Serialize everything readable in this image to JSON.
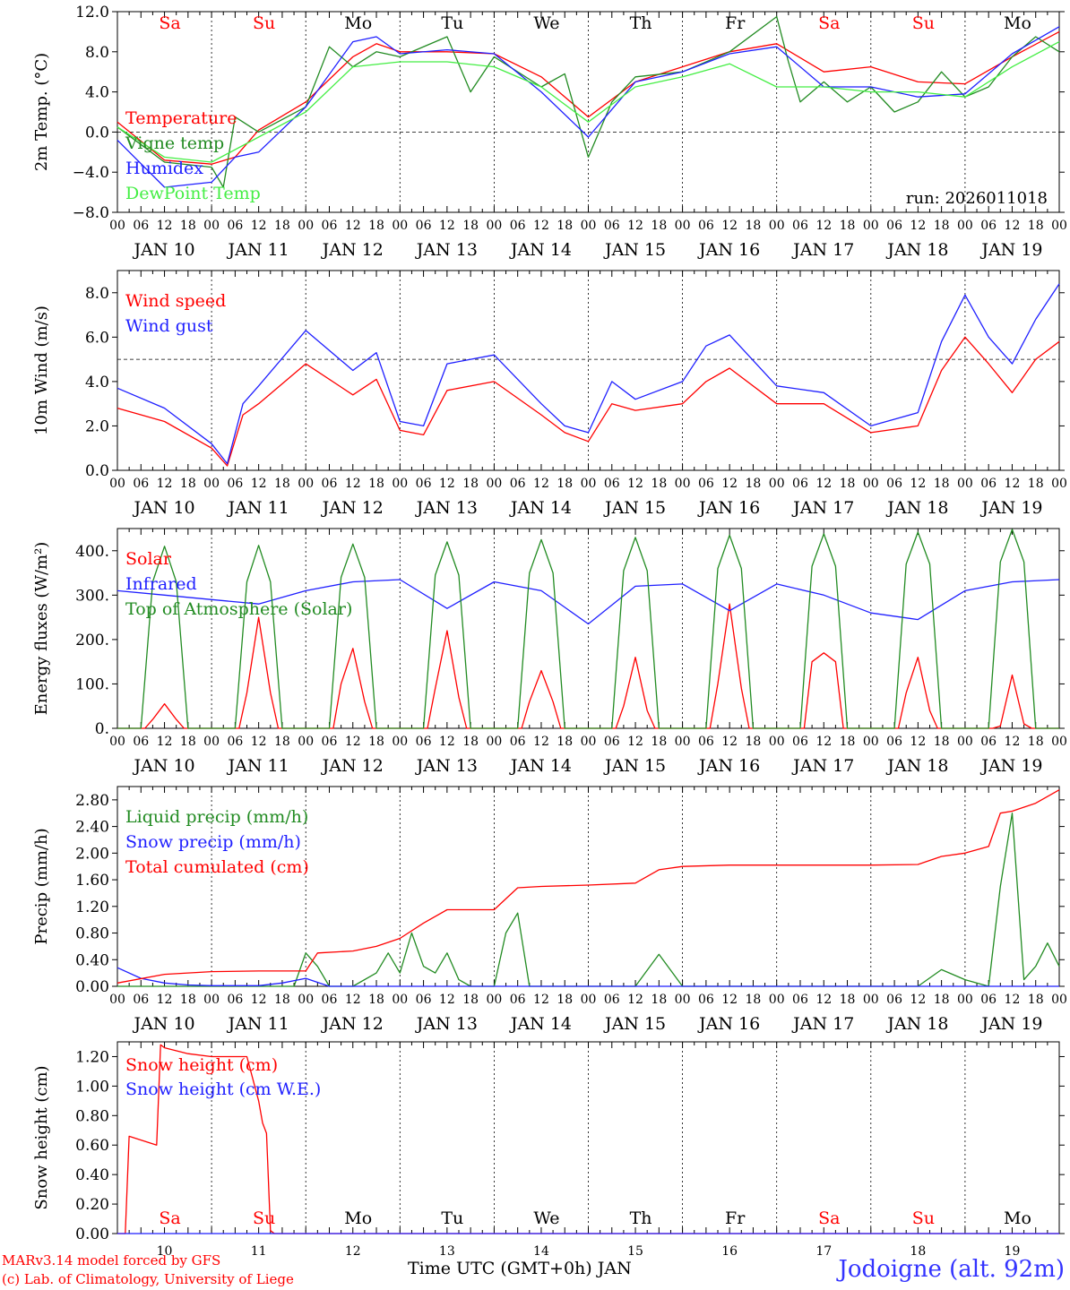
{
  "run_label": "run: 2026011018",
  "station": "Jodoigne (alt. 92m)",
  "credits": [
    "MARv3.14 model forced by GFS",
    "(c) Lab. of Climatology, University of Liege"
  ],
  "x_axis_title": "Time UTC (GMT+0h) JAN",
  "colors": {
    "red": "#ff0000",
    "darkgreen": "#228b22",
    "blue": "#1f1fff",
    "lightgreen": "#44ee44",
    "weekend": "#ff0000",
    "weekday": "#000000"
  },
  "days": [
    {
      "abbr": "Sa",
      "date": "JAN 10",
      "num": "10",
      "weekend": true
    },
    {
      "abbr": "Su",
      "date": "JAN 11",
      "num": "11",
      "weekend": true
    },
    {
      "abbr": "Mo",
      "date": "JAN 12",
      "num": "12",
      "weekend": false
    },
    {
      "abbr": "Tu",
      "date": "JAN 13",
      "num": "13",
      "weekend": false
    },
    {
      "abbr": "We",
      "date": "JAN 14",
      "num": "14",
      "weekend": false
    },
    {
      "abbr": "Th",
      "date": "JAN 15",
      "num": "15",
      "weekend": false
    },
    {
      "abbr": "Fr",
      "date": "JAN 16",
      "num": "16",
      "weekend": false
    },
    {
      "abbr": "Sa",
      "date": "JAN 17",
      "num": "17",
      "weekend": true
    },
    {
      "abbr": "Su",
      "date": "JAN 18",
      "num": "18",
      "weekend": true
    },
    {
      "abbr": "Mo",
      "date": "JAN 19",
      "num": "19",
      "weekend": false
    }
  ],
  "hour_ticks": [
    "00",
    "06",
    "12",
    "18"
  ],
  "chart_data": [
    {
      "type": "line",
      "ylabel": "2m Temp. (°C)",
      "ylim": [
        -8,
        12
      ],
      "yticks": [
        "12.0",
        "8.0",
        "4.0",
        "0.0",
        "−4.0",
        "−8.0"
      ],
      "ytick_values": [
        12,
        8,
        4,
        0,
        -4,
        -8
      ],
      "ref_line": 0,
      "series": [
        {
          "name": "Temperature",
          "color": "#ff0000",
          "x": [
            0,
            12,
            24,
            30,
            36,
            48,
            60,
            66,
            72,
            84,
            96,
            108,
            120,
            132,
            144,
            156,
            168,
            180,
            192,
            204,
            216,
            228,
            240
          ],
          "values": [
            1.0,
            -2.8,
            -3.2,
            -2.5,
            0.2,
            3.0,
            7.5,
            8.8,
            8.0,
            8.0,
            7.8,
            5.5,
            1.5,
            5.0,
            6.5,
            8.0,
            8.8,
            6.0,
            6.5,
            5.0,
            4.8,
            7.5,
            10.0
          ]
        },
        {
          "name": "Vigne temp",
          "color": "#228b22",
          "x": [
            0,
            12,
            24,
            27,
            30,
            36,
            48,
            54,
            60,
            66,
            72,
            84,
            90,
            96,
            108,
            114,
            120,
            126,
            132,
            144,
            156,
            168,
            171,
            174,
            180,
            186,
            192,
            198,
            204,
            210,
            216,
            222,
            228,
            234,
            240
          ],
          "values": [
            0.5,
            -3.0,
            -3.5,
            -5.5,
            1.5,
            0.0,
            2.5,
            8.5,
            6.5,
            8.0,
            7.5,
            9.5,
            4.0,
            7.5,
            4.5,
            5.8,
            -2.5,
            3.0,
            5.5,
            6.0,
            8.0,
            11.5,
            7.0,
            3.0,
            5.0,
            3.0,
            4.5,
            2.0,
            3.0,
            6.0,
            3.5,
            4.5,
            7.5,
            9.5,
            8.0
          ]
        },
        {
          "name": "Humidex",
          "color": "#1f1fff",
          "x": [
            0,
            12,
            24,
            30,
            36,
            48,
            60,
            66,
            72,
            84,
            96,
            108,
            120,
            132,
            144,
            156,
            168,
            180,
            192,
            204,
            216,
            228,
            240
          ],
          "values": [
            -0.8,
            -5.5,
            -5.0,
            -2.5,
            -2.0,
            2.5,
            9.0,
            9.5,
            7.8,
            8.2,
            7.8,
            4.0,
            -0.5,
            5.0,
            6.0,
            7.8,
            8.5,
            4.5,
            4.5,
            3.5,
            3.8,
            7.8,
            10.5
          ]
        },
        {
          "name": "DewPoint Temp",
          "color": "#44ee44",
          "x": [
            0,
            12,
            24,
            36,
            48,
            60,
            72,
            84,
            96,
            108,
            120,
            132,
            144,
            156,
            168,
            180,
            192,
            204,
            216,
            228,
            240
          ],
          "values": [
            0.5,
            -2.5,
            -3.0,
            -0.5,
            2.0,
            6.5,
            7.0,
            7.0,
            6.5,
            4.5,
            1.0,
            4.5,
            5.5,
            6.8,
            4.5,
            4.5,
            4.0,
            4.0,
            3.5,
            6.5,
            9.0
          ]
        }
      ]
    },
    {
      "type": "line",
      "ylabel": "10m Wind (m/s)",
      "ylim": [
        0,
        9
      ],
      "yticks": [
        "8.0",
        "6.0",
        "4.0",
        "2.0",
        "0.0"
      ],
      "ytick_values": [
        8,
        6,
        4,
        2,
        0
      ],
      "ref_line": 5,
      "series": [
        {
          "name": "Wind speed",
          "color": "#ff0000",
          "x": [
            0,
            12,
            24,
            28,
            32,
            36,
            48,
            60,
            66,
            72,
            78,
            84,
            96,
            108,
            114,
            120,
            126,
            132,
            144,
            150,
            156,
            168,
            180,
            192,
            204,
            210,
            216,
            222,
            228,
            234,
            240
          ],
          "values": [
            2.8,
            2.2,
            1.0,
            0.2,
            2.5,
            3.0,
            4.8,
            3.4,
            4.1,
            1.8,
            1.6,
            3.6,
            4.0,
            2.5,
            1.7,
            1.3,
            3.0,
            2.7,
            3.0,
            4.0,
            4.6,
            3.0,
            3.0,
            1.7,
            2.0,
            4.5,
            6.0,
            4.8,
            3.5,
            5.0,
            5.8
          ]
        },
        {
          "name": "Wind gust",
          "color": "#1f1fff",
          "x": [
            0,
            12,
            24,
            28,
            32,
            36,
            48,
            60,
            66,
            72,
            78,
            84,
            96,
            108,
            114,
            120,
            126,
            132,
            144,
            150,
            156,
            168,
            180,
            192,
            204,
            210,
            216,
            222,
            228,
            234,
            240
          ],
          "values": [
            3.7,
            2.8,
            1.2,
            0.3,
            3.0,
            3.8,
            6.3,
            4.5,
            5.3,
            2.2,
            2.0,
            4.8,
            5.2,
            3.0,
            2.0,
            1.7,
            4.0,
            3.2,
            4.0,
            5.6,
            6.1,
            3.8,
            3.5,
            2.0,
            2.6,
            5.8,
            7.9,
            6.0,
            4.8,
            6.8,
            8.4
          ]
        }
      ]
    },
    {
      "type": "line",
      "ylabel": "Energy fluxes (W/m²)",
      "ylim": [
        0,
        450
      ],
      "yticks": [
        "400.",
        "300.",
        "200.",
        "100.",
        "0."
      ],
      "ytick_values": [
        400,
        300,
        200,
        100,
        0
      ],
      "series": [
        {
          "name": "Solar",
          "color": "#ff0000",
          "x": [
            0,
            7,
            9,
            12,
            15,
            17,
            24,
            31,
            33,
            36,
            39,
            41,
            48,
            55,
            57,
            60,
            63,
            65,
            72,
            79,
            81,
            84,
            87,
            89,
            96,
            103,
            105,
            108,
            111,
            113,
            120,
            127,
            129,
            132,
            135,
            137,
            144,
            151,
            153,
            156,
            159,
            161,
            168,
            175,
            177,
            180,
            183,
            185,
            192,
            199,
            201,
            204,
            207,
            209,
            216,
            223,
            225,
            228,
            231,
            233,
            240
          ],
          "values": [
            0,
            0,
            20,
            55,
            20,
            0,
            0,
            0,
            80,
            250,
            80,
            0,
            0,
            0,
            100,
            180,
            60,
            0,
            0,
            0,
            90,
            220,
            70,
            0,
            0,
            0,
            60,
            130,
            60,
            0,
            0,
            0,
            50,
            160,
            40,
            0,
            0,
            0,
            100,
            280,
            90,
            0,
            0,
            0,
            150,
            170,
            150,
            0,
            0,
            0,
            80,
            160,
            40,
            0,
            0,
            0,
            5,
            120,
            10,
            0,
            0
          ]
        },
        {
          "name": "Infrared",
          "color": "#1f1fff",
          "x": [
            0,
            12,
            24,
            36,
            48,
            60,
            72,
            84,
            96,
            108,
            120,
            132,
            144,
            156,
            168,
            180,
            192,
            204,
            216,
            228,
            240
          ],
          "values": [
            310,
            300,
            290,
            280,
            310,
            330,
            335,
            270,
            330,
            310,
            235,
            320,
            325,
            265,
            325,
            300,
            260,
            245,
            310,
            330,
            335
          ]
        },
        {
          "name": "Top of Atmosphere (Solar)",
          "color": "#228b22",
          "x": [
            0,
            6,
            9,
            12,
            15,
            18,
            24,
            30,
            33,
            36,
            39,
            42,
            48,
            54,
            57,
            60,
            63,
            66,
            72,
            78,
            81,
            84,
            87,
            90,
            96,
            102,
            105,
            108,
            111,
            114,
            120,
            126,
            129,
            132,
            135,
            138,
            144,
            150,
            153,
            156,
            159,
            162,
            168,
            174,
            177,
            180,
            183,
            186,
            192,
            198,
            201,
            204,
            207,
            210,
            216,
            222,
            225,
            228,
            231,
            234,
            240
          ],
          "values": [
            0,
            0,
            330,
            410,
            330,
            0,
            0,
            0,
            330,
            412,
            330,
            0,
            0,
            0,
            340,
            415,
            340,
            0,
            0,
            0,
            345,
            420,
            345,
            0,
            0,
            0,
            350,
            425,
            350,
            0,
            0,
            0,
            355,
            430,
            355,
            0,
            0,
            0,
            360,
            435,
            360,
            0,
            0,
            0,
            365,
            438,
            365,
            0,
            0,
            0,
            370,
            442,
            370,
            0,
            0,
            0,
            375,
            448,
            375,
            0,
            0
          ]
        }
      ]
    },
    {
      "type": "line",
      "ylabel": "Precip (mm/h)",
      "ylim": [
        0,
        3.0
      ],
      "yticks": [
        "2.80",
        "2.40",
        "2.00",
        "1.60",
        "1.20",
        "0.80",
        "0.40",
        "0.00"
      ],
      "ytick_values": [
        2.8,
        2.4,
        2.0,
        1.6,
        1.2,
        0.8,
        0.4,
        0.0
      ],
      "series": [
        {
          "name": "Liquid precip (mm/h)",
          "color": "#228b22",
          "x": [
            0,
            45,
            48,
            51,
            54,
            60,
            66,
            69,
            72,
            75,
            78,
            81,
            84,
            87,
            90,
            96,
            99,
            102,
            105,
            108,
            132,
            138,
            144,
            204,
            210,
            216,
            222,
            225,
            228,
            231,
            234,
            237,
            240
          ],
          "values": [
            0,
            0,
            0.5,
            0.3,
            0,
            0,
            0.2,
            0.5,
            0.2,
            0.8,
            0.3,
            0.2,
            0.5,
            0.1,
            0,
            0,
            0.8,
            1.1,
            0,
            0,
            0,
            0.48,
            0,
            0,
            0.25,
            0.1,
            0,
            1.5,
            2.6,
            0.1,
            0.3,
            0.65,
            0.3
          ]
        },
        {
          "name": "Snow precip (mm/h)",
          "color": "#1f1fff",
          "x": [
            0,
            6,
            12,
            18,
            24,
            36,
            42,
            48,
            54,
            240
          ],
          "values": [
            0.28,
            0.12,
            0.05,
            0.02,
            0.01,
            0.01,
            0.05,
            0.12,
            0,
            0
          ]
        },
        {
          "name": "Total cumulated (cm)",
          "color": "#ff0000",
          "x": [
            0,
            12,
            24,
            36,
            48,
            51,
            60,
            66,
            72,
            78,
            84,
            96,
            102,
            108,
            120,
            132,
            138,
            144,
            156,
            168,
            180,
            192,
            204,
            210,
            216,
            222,
            225,
            228,
            234,
            240
          ],
          "values": [
            0.05,
            0.18,
            0.22,
            0.23,
            0.23,
            0.5,
            0.53,
            0.6,
            0.72,
            0.95,
            1.15,
            1.15,
            1.48,
            1.5,
            1.52,
            1.55,
            1.75,
            1.8,
            1.82,
            1.82,
            1.82,
            1.82,
            1.83,
            1.95,
            2.0,
            2.1,
            2.6,
            2.63,
            2.75,
            2.95
          ]
        }
      ]
    },
    {
      "type": "line",
      "ylabel": "Snow height (cm)",
      "ylim": [
        0,
        1.3
      ],
      "yticks": [
        "1.20",
        "1.00",
        "0.80",
        "0.60",
        "0.40",
        "0.20",
        "0.00"
      ],
      "ytick_values": [
        1.2,
        1.0,
        0.8,
        0.6,
        0.4,
        0.2,
        0.0
      ],
      "series": [
        {
          "name": "Snow height (cm)",
          "color": "#ff0000",
          "x": [
            0,
            2,
            3,
            10,
            11,
            12,
            18,
            24,
            33,
            36,
            37,
            38,
            39,
            40,
            240
          ],
          "values": [
            0,
            0,
            0.66,
            0.6,
            1.28,
            1.26,
            1.22,
            1.2,
            1.2,
            0.9,
            0.75,
            0.68,
            0.02,
            0,
            0
          ]
        },
        {
          "name": "Snow height (cm W.E.)",
          "color": "#1f1fff",
          "x": [
            0,
            240
          ],
          "values": [
            0,
            0
          ]
        }
      ]
    }
  ]
}
